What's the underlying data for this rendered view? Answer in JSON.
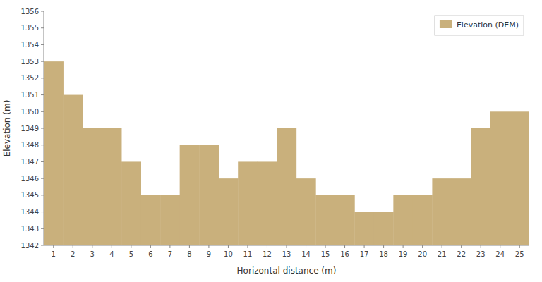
{
  "chart_data": {
    "type": "bar",
    "xlabel": "Horizontal distance (m)",
    "ylabel": "Elevation (m)",
    "x": [
      1,
      2,
      3,
      4,
      5,
      6,
      7,
      8,
      9,
      10,
      11,
      12,
      13,
      14,
      15,
      16,
      17,
      18,
      19,
      20,
      21,
      22,
      23,
      24,
      25
    ],
    "series": [
      {
        "name": "Elevation (DEM)",
        "color": "#C9B07C",
        "values": [
          1353,
          1351,
          1349,
          1349,
          1347,
          1345,
          1345,
          1348,
          1348,
          1346,
          1347,
          1347,
          1349,
          1346,
          1345,
          1345,
          1344,
          1344,
          1345,
          1345,
          1346,
          1346,
          1349,
          1350,
          1350
        ]
      }
    ],
    "xlim": [
      0.5,
      25.5
    ],
    "ylim": [
      1342,
      1356
    ],
    "xticks": [
      1,
      2,
      3,
      4,
      5,
      6,
      7,
      8,
      9,
      10,
      11,
      12,
      13,
      14,
      15,
      16,
      17,
      18,
      19,
      20,
      21,
      22,
      23,
      24,
      25
    ],
    "yticks": [
      1342,
      1343,
      1344,
      1345,
      1346,
      1347,
      1348,
      1349,
      1350,
      1351,
      1352,
      1353,
      1354,
      1355,
      1356
    ],
    "grid": false,
    "legend": "upper right"
  }
}
